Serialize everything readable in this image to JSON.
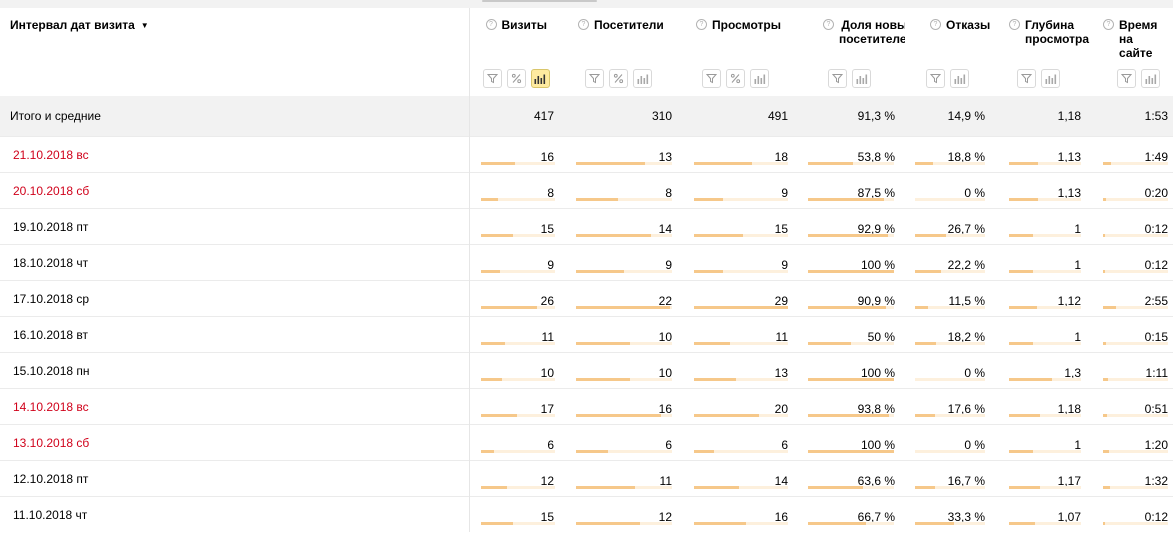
{
  "header": {
    "dimension_label": "Интервал дат визита",
    "metrics": [
      {
        "key": "visits",
        "label": "Визиты",
        "buttons": [
          "filter",
          "percent",
          "chart"
        ],
        "active": "chart"
      },
      {
        "key": "visitors",
        "label": "Посетители",
        "buttons": [
          "filter",
          "percent",
          "chart"
        ]
      },
      {
        "key": "views",
        "label": "Просмотры",
        "buttons": [
          "filter",
          "percent",
          "chart"
        ]
      },
      {
        "key": "newshare",
        "label": "Доля новых посетителей",
        "buttons": [
          "filter",
          "chart"
        ]
      },
      {
        "key": "bounce",
        "label": "Отказы",
        "buttons": [
          "filter",
          "chart"
        ]
      },
      {
        "key": "depth",
        "label": "Глубина просмотра",
        "buttons": [
          "filter",
          "chart"
        ]
      },
      {
        "key": "time",
        "label": "Время на сайте",
        "buttons": [
          "filter",
          "chart"
        ]
      }
    ]
  },
  "totals": {
    "label": "Итого и средние",
    "values": [
      "417",
      "310",
      "491",
      "91,3 %",
      "14,9 %",
      "1,18",
      "1:53"
    ]
  },
  "rows": [
    {
      "date": "21.10.2018 вс",
      "weekend": true,
      "values": [
        "16",
        "13",
        "18",
        "53,8 %",
        "18,8 %",
        "1,13",
        "1:49"
      ],
      "fill": [
        0.46,
        0.72,
        0.62,
        0.52,
        0.26,
        0.4,
        0.12
      ]
    },
    {
      "date": "20.10.2018 сб",
      "weekend": true,
      "values": [
        "8",
        "8",
        "9",
        "87,5 %",
        "0 %",
        "1,13",
        "0:20"
      ],
      "fill": [
        0.23,
        0.44,
        0.31,
        0.88,
        0.0,
        0.4,
        0.04
      ]
    },
    {
      "date": "19.10.2018 пт",
      "weekend": false,
      "values": [
        "15",
        "14",
        "15",
        "92,9 %",
        "26,7 %",
        "1",
        "0:12"
      ],
      "fill": [
        0.43,
        0.78,
        0.52,
        0.93,
        0.44,
        0.34,
        0.03
      ]
    },
    {
      "date": "18.10.2018 чт",
      "weekend": false,
      "values": [
        "9",
        "9",
        "9",
        "100 %",
        "22,2 %",
        "1",
        "0:12"
      ],
      "fill": [
        0.26,
        0.5,
        0.31,
        1.0,
        0.37,
        0.34,
        0.03
      ]
    },
    {
      "date": "17.10.2018 ср",
      "weekend": false,
      "values": [
        "26",
        "22",
        "29",
        "90,9 %",
        "11,5 %",
        "1,12",
        "2:55"
      ],
      "fill": [
        0.75,
        0.98,
        1.0,
        0.91,
        0.19,
        0.39,
        0.2
      ]
    },
    {
      "date": "16.10.2018 вт",
      "weekend": false,
      "values": [
        "11",
        "10",
        "11",
        "50 %",
        "18,2 %",
        "1",
        "0:15"
      ],
      "fill": [
        0.32,
        0.56,
        0.38,
        0.5,
        0.3,
        0.34,
        0.04
      ]
    },
    {
      "date": "15.10.2018 пн",
      "weekend": false,
      "values": [
        "10",
        "10",
        "13",
        "100 %",
        "0 %",
        "1,3",
        "1:11"
      ],
      "fill": [
        0.29,
        0.56,
        0.45,
        1.0,
        0.0,
        0.6,
        0.08
      ]
    },
    {
      "date": "14.10.2018 вс",
      "weekend": true,
      "values": [
        "17",
        "16",
        "20",
        "93,8 %",
        "17,6 %",
        "1,18",
        "0:51"
      ],
      "fill": [
        0.49,
        0.89,
        0.69,
        0.94,
        0.29,
        0.43,
        0.06
      ]
    },
    {
      "date": "13.10.2018 сб",
      "weekend": true,
      "values": [
        "6",
        "6",
        "6",
        "100 %",
        "0 %",
        "1",
        "1:20"
      ],
      "fill": [
        0.17,
        0.33,
        0.21,
        1.0,
        0.0,
        0.34,
        0.09
      ]
    },
    {
      "date": "12.10.2018 пт",
      "weekend": false,
      "values": [
        "12",
        "11",
        "14",
        "63,6 %",
        "16,7 %",
        "1,17",
        "1:32"
      ],
      "fill": [
        0.35,
        0.61,
        0.48,
        0.64,
        0.28,
        0.43,
        0.1
      ]
    },
    {
      "date": "11.10.2018 чт",
      "weekend": false,
      "values": [
        "15",
        "12",
        "16",
        "66,7 %",
        "33,3 %",
        "1,07",
        "0:12"
      ],
      "fill": [
        0.43,
        0.67,
        0.55,
        0.67,
        0.55,
        0.36,
        0.03
      ]
    }
  ],
  "colors": {
    "weekend_text": "#d0021b",
    "bar_fill": "#f6c88a",
    "bar_track": "#fdf0dd",
    "active_button": "#ffeba0"
  }
}
